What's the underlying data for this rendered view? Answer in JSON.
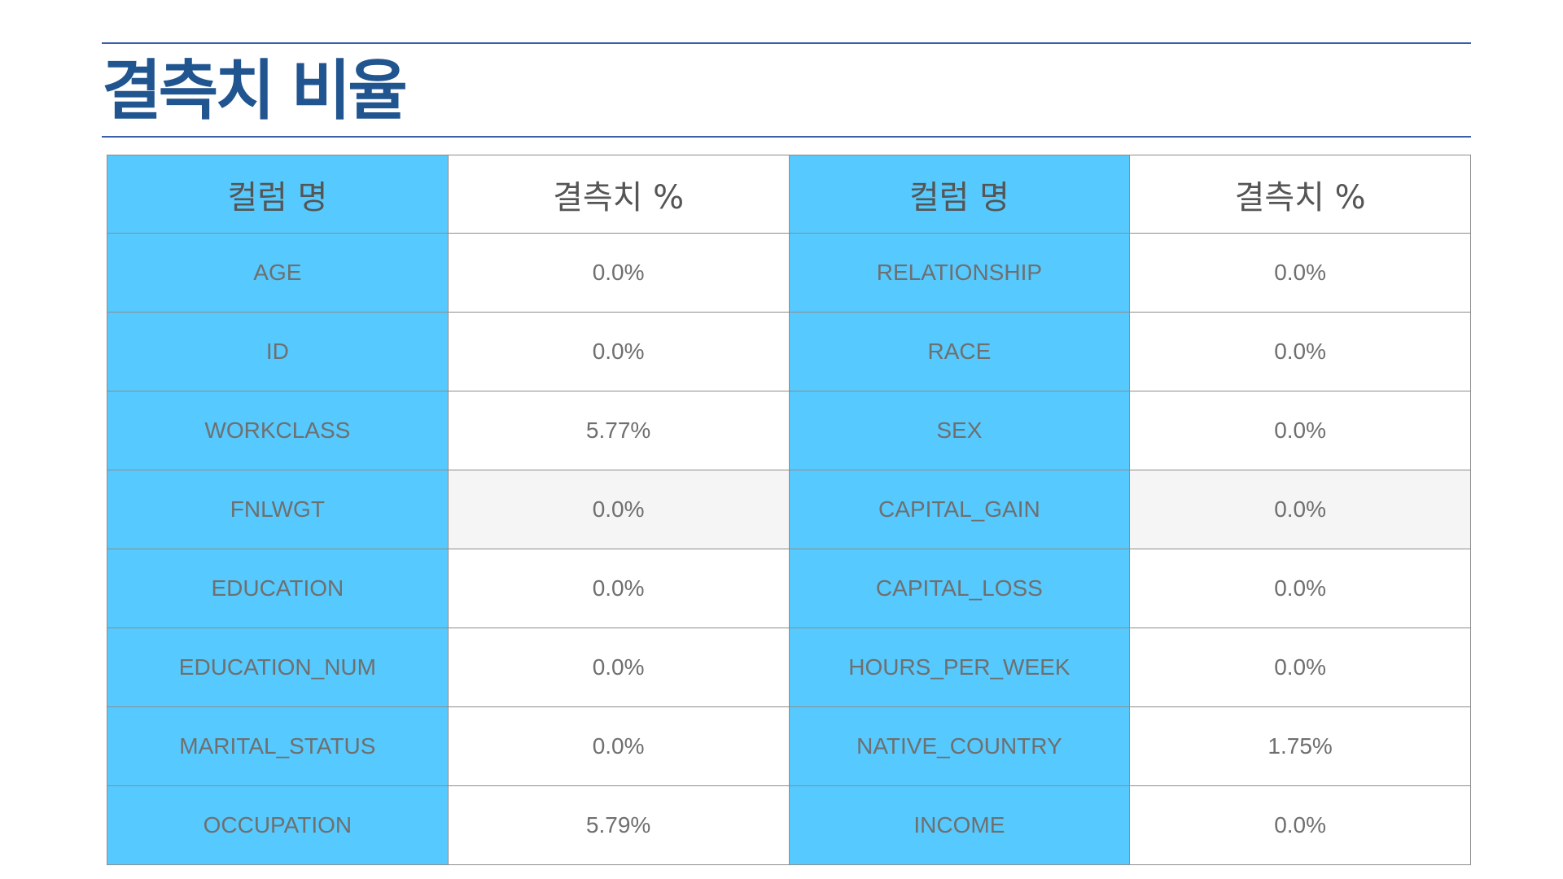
{
  "slide": {
    "title": "결측치 비율"
  },
  "table": {
    "headers": [
      "컬럼 명",
      "결측치 %",
      "컬럼 명",
      "결측치 %"
    ],
    "rows": [
      {
        "left_name": "AGE",
        "left_value": "0.0%",
        "right_name": "RELATIONSHIP",
        "right_value": "0.0%"
      },
      {
        "left_name": "ID",
        "left_value": "0.0%",
        "right_name": "RACE",
        "right_value": "0.0%"
      },
      {
        "left_name": "WORKCLASS",
        "left_value": "5.77%",
        "right_name": "SEX",
        "right_value": "0.0%"
      },
      {
        "left_name": "FNLWGT",
        "left_value": "0.0%",
        "right_name": "CAPITAL_GAIN",
        "right_value": "0.0%"
      },
      {
        "left_name": "EDUCATION",
        "left_value": "0.0%",
        "right_name": "CAPITAL_LOSS",
        "right_value": "0.0%"
      },
      {
        "left_name": "EDUCATION_NUM",
        "left_value": "0.0%",
        "right_name": "HOURS_PER_WEEK",
        "right_value": "0.0%"
      },
      {
        "left_name": "MARITAL_STATUS",
        "left_value": "0.0%",
        "right_name": "NATIVE_COUNTRY",
        "right_value": "1.75%"
      },
      {
        "left_name": "OCCUPATION",
        "left_value": "5.79%",
        "right_name": "INCOME",
        "right_value": "0.0%"
      }
    ]
  },
  "colors": {
    "title": "#21558f",
    "rule": "#3a5fa8",
    "name_cell_bg": "#56c9fe",
    "value_cell_bg": "#ffffff",
    "highlight_row_bg": "#f5f5f5",
    "cell_text": "#6f6f6f",
    "border": "#8d8d8d"
  }
}
